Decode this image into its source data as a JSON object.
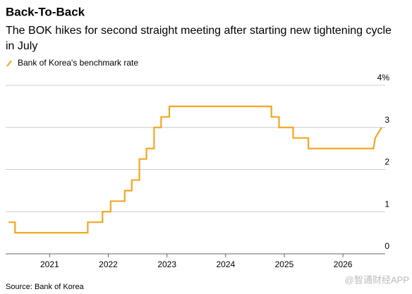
{
  "chart_data": {
    "type": "line",
    "title": "Back-To-Back",
    "subtitle": "The BOK hikes for second straight meeting after starting new tightening cycle in July",
    "source": "Source: Bank of Korea",
    "watermark": "@智通财经APP",
    "series": [
      {
        "name": "Bank of Korea's benchmark rate",
        "color": "#f5a623",
        "x": [
          2020.3,
          2020.41,
          2020.41,
          2021.65,
          2021.65,
          2021.9,
          2021.9,
          2022.04,
          2022.04,
          2022.28,
          2022.28,
          2022.4,
          2022.4,
          2022.53,
          2022.53,
          2022.65,
          2022.65,
          2022.78,
          2022.78,
          2022.9,
          2022.9,
          2023.04,
          2023.04,
          2024.78,
          2024.78,
          2024.91,
          2024.91,
          2025.15,
          2025.15,
          2025.41,
          2025.41,
          2026.52,
          2026.55,
          2026.66
        ],
        "values": [
          0.75,
          0.75,
          0.5,
          0.5,
          0.75,
          0.75,
          1.0,
          1.0,
          1.25,
          1.25,
          1.5,
          1.5,
          1.75,
          1.75,
          2.25,
          2.25,
          2.5,
          2.5,
          3.0,
          3.0,
          3.25,
          3.25,
          3.5,
          3.5,
          3.25,
          3.25,
          3.0,
          3.0,
          2.75,
          2.75,
          2.5,
          2.5,
          2.75,
          3.0
        ]
      }
    ],
    "xlim": [
      2020.25,
      2026.72
    ],
    "xticks": [
      2021,
      2022,
      2023,
      2024,
      2025,
      2026
    ],
    "ylim": [
      0,
      4
    ],
    "yticks": [
      0,
      1,
      2,
      3,
      {
        "value": 4,
        "label": "4%"
      }
    ],
    "grid": true
  }
}
